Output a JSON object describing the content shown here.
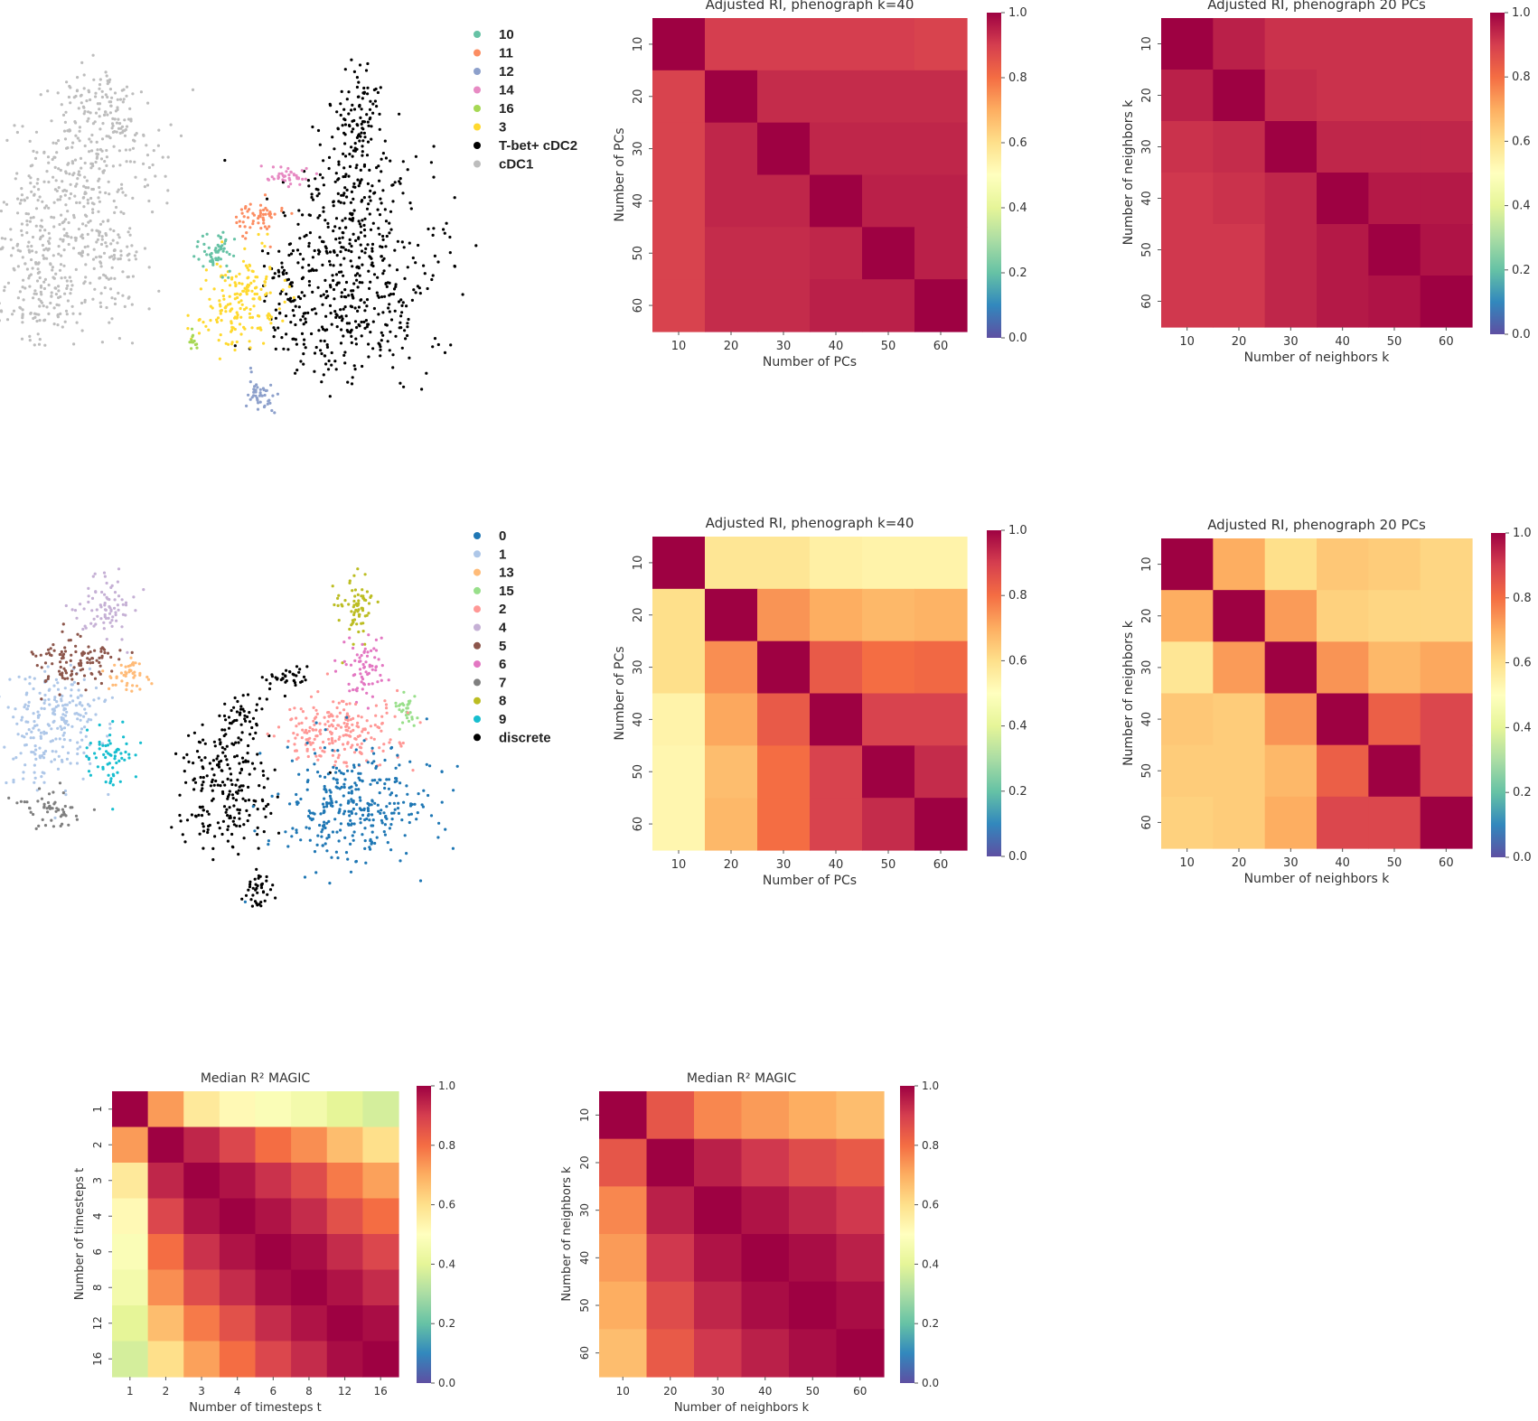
{
  "chart_data": [
    {
      "type": "scatter",
      "id": "umap-top",
      "legend": [
        {
          "label": "10",
          "color": "#66c2a5"
        },
        {
          "label": "11",
          "color": "#fc8d62"
        },
        {
          "label": "12",
          "color": "#8da0cb"
        },
        {
          "label": "14",
          "color": "#e78ac3"
        },
        {
          "label": "16",
          "color": "#a6d854"
        },
        {
          "label": "3",
          "color": "#ffd92f"
        },
        {
          "label": "T-bet+ cDC2",
          "color": "#000000"
        },
        {
          "label": "cDC1",
          "color": "#bdbdbd"
        }
      ],
      "legend_placement": "right",
      "axes": "off"
    },
    {
      "type": "heatmap",
      "id": "ari-k40-top",
      "title": "Adjusted RI, phenograph k=40",
      "xlabel": "Number of PCs",
      "ylabel": "Number of PCs",
      "x_ticks": [
        "10",
        "20",
        "30",
        "40",
        "50",
        "60"
      ],
      "y_ticks": [
        "10",
        "20",
        "30",
        "40",
        "50",
        "60"
      ],
      "values": [
        [
          1.0,
          0.9,
          0.9,
          0.9,
          0.9,
          0.89
        ],
        [
          0.89,
          1.0,
          0.93,
          0.93,
          0.93,
          0.93
        ],
        [
          0.89,
          0.94,
          1.0,
          0.94,
          0.94,
          0.94
        ],
        [
          0.89,
          0.94,
          0.94,
          1.0,
          0.95,
          0.95
        ],
        [
          0.89,
          0.93,
          0.93,
          0.94,
          1.0,
          0.95
        ],
        [
          0.89,
          0.93,
          0.93,
          0.95,
          0.95,
          1.0
        ]
      ],
      "colorbar_ticks": [
        "0.0",
        "0.2",
        "0.4",
        "0.6",
        "0.8",
        "1.0"
      ],
      "vmin": 0,
      "vmax": 1,
      "colormap": "Spectral_r"
    },
    {
      "type": "heatmap",
      "id": "ari-20pcs-top",
      "title": "Adjusted RI, phenograph 20 PCs",
      "xlabel": "Number of neighbors k",
      "ylabel": "Number of neighbors k",
      "x_ticks": [
        "10",
        "20",
        "30",
        "40",
        "50",
        "60"
      ],
      "y_ticks": [
        "10",
        "20",
        "30",
        "40",
        "50",
        "60"
      ],
      "values": [
        [
          1.0,
          0.95,
          0.92,
          0.92,
          0.92,
          0.92
        ],
        [
          0.95,
          1.0,
          0.93,
          0.92,
          0.92,
          0.92
        ],
        [
          0.92,
          0.93,
          1.0,
          0.94,
          0.94,
          0.94
        ],
        [
          0.91,
          0.92,
          0.94,
          1.0,
          0.96,
          0.96
        ],
        [
          0.91,
          0.91,
          0.94,
          0.96,
          1.0,
          0.97
        ],
        [
          0.91,
          0.91,
          0.94,
          0.96,
          0.97,
          1.0
        ]
      ],
      "colorbar_ticks": [
        "0.0",
        "0.2",
        "0.4",
        "0.6",
        "0.8",
        "1.0"
      ],
      "vmin": 0,
      "vmax": 1,
      "colormap": "Spectral_r"
    },
    {
      "type": "scatter",
      "id": "umap-middle",
      "legend": [
        {
          "label": "0",
          "color": "#1f77b4"
        },
        {
          "label": "1",
          "color": "#aec7e8"
        },
        {
          "label": "13",
          "color": "#ffbb78"
        },
        {
          "label": "15",
          "color": "#98df8a"
        },
        {
          "label": "2",
          "color": "#ff9896"
        },
        {
          "label": "4",
          "color": "#c5b0d5"
        },
        {
          "label": "5",
          "color": "#8c564b"
        },
        {
          "label": "6",
          "color": "#e377c2"
        },
        {
          "label": "7",
          "color": "#7f7f7f"
        },
        {
          "label": "8",
          "color": "#bcbd22"
        },
        {
          "label": "9",
          "color": "#17becf"
        },
        {
          "label": "discrete",
          "color": "#000000"
        }
      ],
      "legend_placement": "right",
      "axes": "off"
    },
    {
      "type": "heatmap",
      "id": "ari-k40-middle",
      "title": "Adjusted RI, phenograph k=40",
      "xlabel": "Number of PCs",
      "ylabel": "Number of PCs",
      "x_ticks": [
        "10",
        "20",
        "30",
        "40",
        "50",
        "60"
      ],
      "y_ticks": [
        "10",
        "20",
        "30",
        "40",
        "50",
        "60"
      ],
      "values": [
        [
          1.0,
          0.58,
          0.58,
          0.55,
          0.54,
          0.54
        ],
        [
          0.6,
          1.0,
          0.74,
          0.7,
          0.68,
          0.69
        ],
        [
          0.6,
          0.75,
          1.0,
          0.84,
          0.8,
          0.81
        ],
        [
          0.54,
          0.71,
          0.84,
          1.0,
          0.89,
          0.89
        ],
        [
          0.53,
          0.67,
          0.8,
          0.89,
          1.0,
          0.93
        ],
        [
          0.53,
          0.68,
          0.8,
          0.89,
          0.93,
          1.0
        ]
      ],
      "colorbar_ticks": [
        "0.0",
        "0.2",
        "0.4",
        "0.6",
        "0.8",
        "1.0"
      ],
      "vmin": 0,
      "vmax": 1,
      "colormap": "Spectral_r"
    },
    {
      "type": "heatmap",
      "id": "ari-20pcs-middle",
      "title": "Adjusted RI, phenograph 20 PCs",
      "xlabel": "Number of neighbors k",
      "ylabel": "Number of neighbors k",
      "x_ticks": [
        "10",
        "20",
        "30",
        "40",
        "50",
        "60"
      ],
      "y_ticks": [
        "10",
        "20",
        "30",
        "40",
        "50",
        "60"
      ],
      "values": [
        [
          1.0,
          0.7,
          0.6,
          0.65,
          0.64,
          0.62
        ],
        [
          0.7,
          1.0,
          0.73,
          0.63,
          0.62,
          0.62
        ],
        [
          0.58,
          0.73,
          1.0,
          0.74,
          0.68,
          0.71
        ],
        [
          0.65,
          0.64,
          0.74,
          1.0,
          0.83,
          0.88
        ],
        [
          0.64,
          0.64,
          0.68,
          0.83,
          1.0,
          0.88
        ],
        [
          0.63,
          0.64,
          0.7,
          0.88,
          0.88,
          1.0
        ]
      ],
      "colorbar_ticks": [
        "0.0",
        "0.2",
        "0.4",
        "0.6",
        "0.8",
        "1.0"
      ],
      "vmin": 0,
      "vmax": 1,
      "colormap": "Spectral_r"
    },
    {
      "type": "heatmap",
      "id": "r2-timesteps",
      "title": "Median R² MAGIC",
      "xlabel": "Number of timesteps t",
      "ylabel": "Number of timesteps t",
      "x_ticks": [
        "1",
        "2",
        "3",
        "4",
        "6",
        "8",
        "12",
        "16"
      ],
      "y_ticks": [
        "1",
        "2",
        "3",
        "4",
        "6",
        "8",
        "12",
        "16"
      ],
      "values": [
        [
          1.0,
          0.73,
          0.57,
          0.52,
          0.48,
          0.45,
          0.4,
          0.37
        ],
        [
          0.73,
          1.0,
          0.94,
          0.88,
          0.8,
          0.75,
          0.67,
          0.6
        ],
        [
          0.57,
          0.94,
          1.0,
          0.97,
          0.92,
          0.87,
          0.78,
          0.72
        ],
        [
          0.52,
          0.88,
          0.97,
          1.0,
          0.97,
          0.93,
          0.86,
          0.8
        ],
        [
          0.48,
          0.8,
          0.92,
          0.97,
          1.0,
          0.98,
          0.93,
          0.88
        ],
        [
          0.45,
          0.75,
          0.87,
          0.93,
          0.98,
          1.0,
          0.97,
          0.93
        ],
        [
          0.4,
          0.67,
          0.78,
          0.86,
          0.93,
          0.97,
          1.0,
          0.98
        ],
        [
          0.37,
          0.6,
          0.72,
          0.8,
          0.88,
          0.93,
          0.98,
          1.0
        ]
      ],
      "colorbar_ticks": [
        "0.0",
        "0.2",
        "0.4",
        "0.6",
        "0.8",
        "1.0"
      ],
      "vmin": 0,
      "vmax": 1,
      "colormap": "Spectral_r"
    },
    {
      "type": "heatmap",
      "id": "r2-neighbors",
      "title": "Median R² MAGIC",
      "xlabel": "Number of neighbors k",
      "ylabel": "Number of neighbors k",
      "x_ticks": [
        "10",
        "20",
        "30",
        "40",
        "50",
        "60"
      ],
      "y_ticks": [
        "10",
        "20",
        "30",
        "40",
        "50",
        "60"
      ],
      "values": [
        [
          1.0,
          0.85,
          0.76,
          0.73,
          0.7,
          0.67
        ],
        [
          0.85,
          1.0,
          0.95,
          0.91,
          0.87,
          0.84
        ],
        [
          0.76,
          0.95,
          1.0,
          0.97,
          0.94,
          0.91
        ],
        [
          0.73,
          0.91,
          0.97,
          1.0,
          0.98,
          0.95
        ],
        [
          0.7,
          0.87,
          0.94,
          0.98,
          1.0,
          0.98
        ],
        [
          0.67,
          0.84,
          0.91,
          0.95,
          0.98,
          1.0
        ]
      ],
      "colorbar_ticks": [
        "0.0",
        "0.2",
        "0.4",
        "0.6",
        "0.8",
        "1.0"
      ],
      "vmin": 0,
      "vmax": 1,
      "colormap": "Spectral_r"
    }
  ]
}
